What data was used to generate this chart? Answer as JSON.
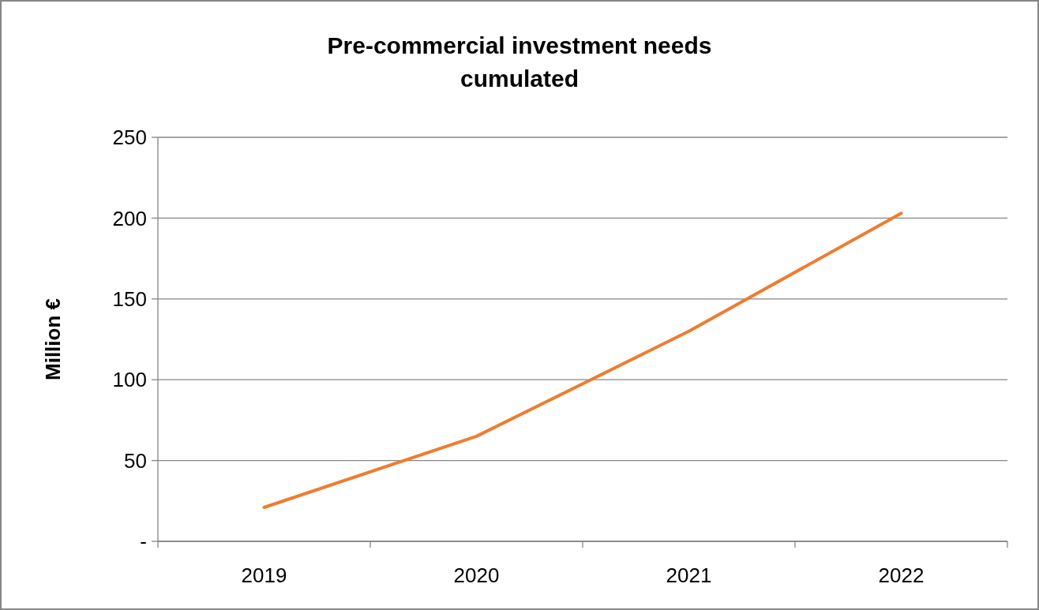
{
  "chart_data": {
    "type": "line",
    "title": "Pre-commercial investment needs cumulated",
    "ylabel": "Million €",
    "categories": [
      "2019",
      "2020",
      "2021",
      "2022"
    ],
    "series": [
      {
        "color": "#ed7d31",
        "values": [
          21,
          65,
          130,
          203
        ]
      }
    ],
    "ylim": [
      0,
      250
    ],
    "yticks": [
      {
        "value": 0,
        "label": "-"
      },
      50,
      100,
      150,
      200,
      250
    ],
    "grid": "y",
    "marker": "none",
    "line_style": "solid"
  }
}
